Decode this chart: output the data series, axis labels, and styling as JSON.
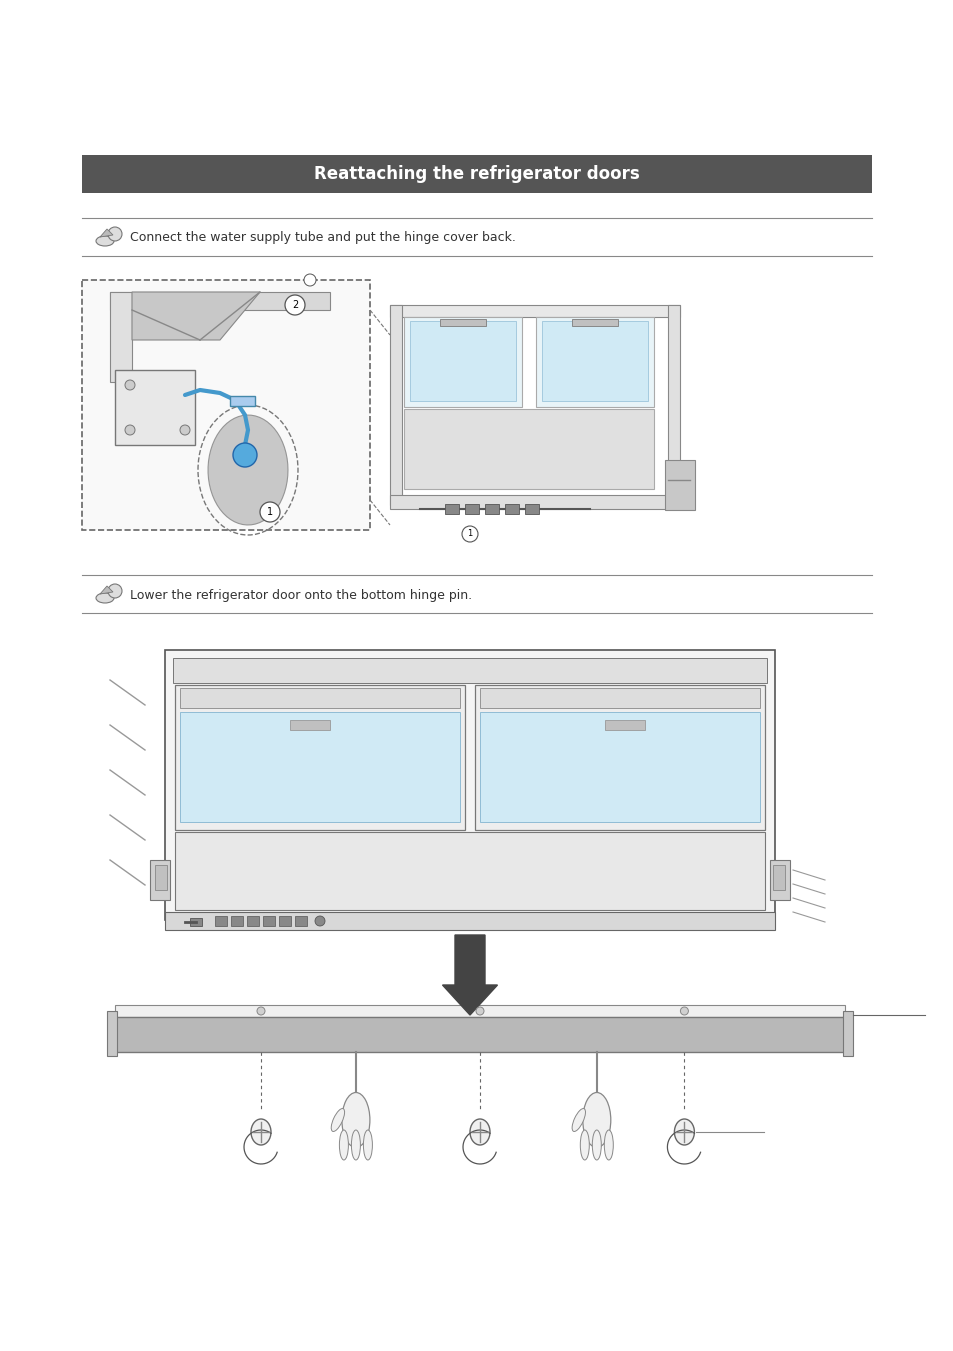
{
  "page_bg": "#ffffff",
  "header_bar_color": "#555555",
  "header_text": "Reattaching the refrigerator doors",
  "header_text_color": "#ffffff",
  "header_text_size": 12,
  "step1_text": "Connect the water supply tube and put the hinge cover back.",
  "step2_text": "Lower the refrigerator door onto the bottom hinge pin.",
  "note_text_size": 9,
  "note_text_color": "#333333",
  "line_color": "#888888",
  "dark_gray": "#444444",
  "mid_gray": "#888888",
  "light_gray": "#cccccc",
  "blue_fill": "#d0eaf5",
  "blue_stroke": "#90bcd5"
}
